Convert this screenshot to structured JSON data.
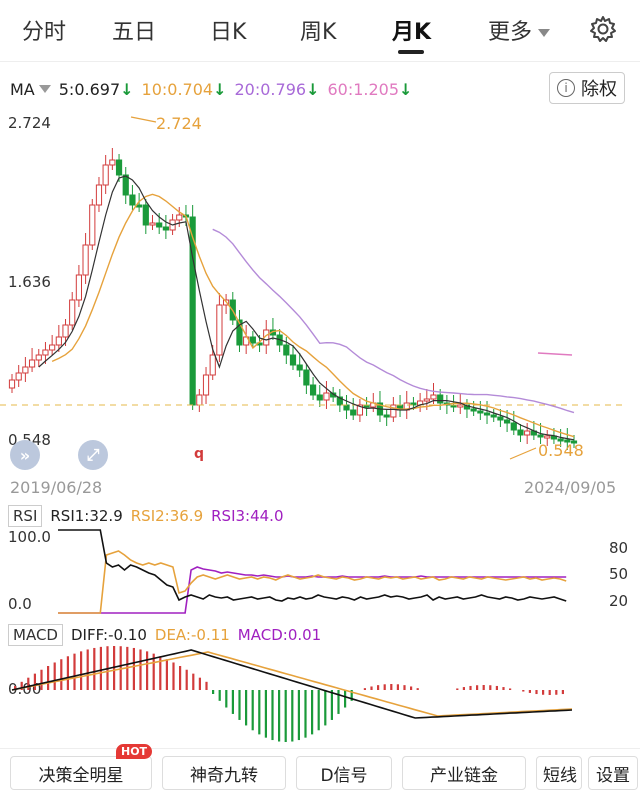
{
  "tabs": [
    {
      "label": "分时"
    },
    {
      "label": "五日"
    },
    {
      "label": "日K"
    },
    {
      "label": "周K"
    },
    {
      "label": "月K",
      "active": true
    },
    {
      "label": "更多"
    }
  ],
  "ma": {
    "label": "MA",
    "items": [
      {
        "text": "5:0.697",
        "arrow": "↓",
        "color": "#222222"
      },
      {
        "text": "10:0.704",
        "arrow": "↓",
        "color": "#e6a23c"
      },
      {
        "text": "20:0.796",
        "arrow": "↓",
        "color": "#a86ad8"
      },
      {
        "text": "60:1.205",
        "arrow": "↓",
        "color": "#e07ac0"
      }
    ],
    "arrow_color": "#1a9a3a"
  },
  "chuquan_label": "除权",
  "price_axis": {
    "high": "2.724",
    "mid": "1.636",
    "low": "0.548"
  },
  "markers": {
    "max": "2.724",
    "min": "0.548",
    "q_mark": "q"
  },
  "dates": {
    "start": "2019/06/28",
    "end": "2024/09/05"
  },
  "rsi": {
    "name": "RSI",
    "rsi1": "RSI1:32.9",
    "rsi2": "RSI2:36.9",
    "rsi3": "RSI3:44.0",
    "left_top": "100.0",
    "left_bottom": "0.0",
    "right": [
      "80",
      "50",
      "20"
    ]
  },
  "macd": {
    "name": "MACD",
    "diff": "DIFF:-0.10",
    "dea": "DEA:-0.11",
    "macd": "MACD:0.01",
    "zero": "0.00"
  },
  "bottom": {
    "btn1": "决策全明星",
    "hot": "HOT",
    "btn2": "神奇九转",
    "btn3": "D信号",
    "btn4": "产业链金",
    "btn5": "短线",
    "btn6": "设置"
  },
  "colors": {
    "up": "#d23b3b",
    "down": "#1a9a3a",
    "ma5": "#222222",
    "ma10": "#e6a23c",
    "ma20": "#a86ad8",
    "ma60": "#e07ac0"
  }
}
